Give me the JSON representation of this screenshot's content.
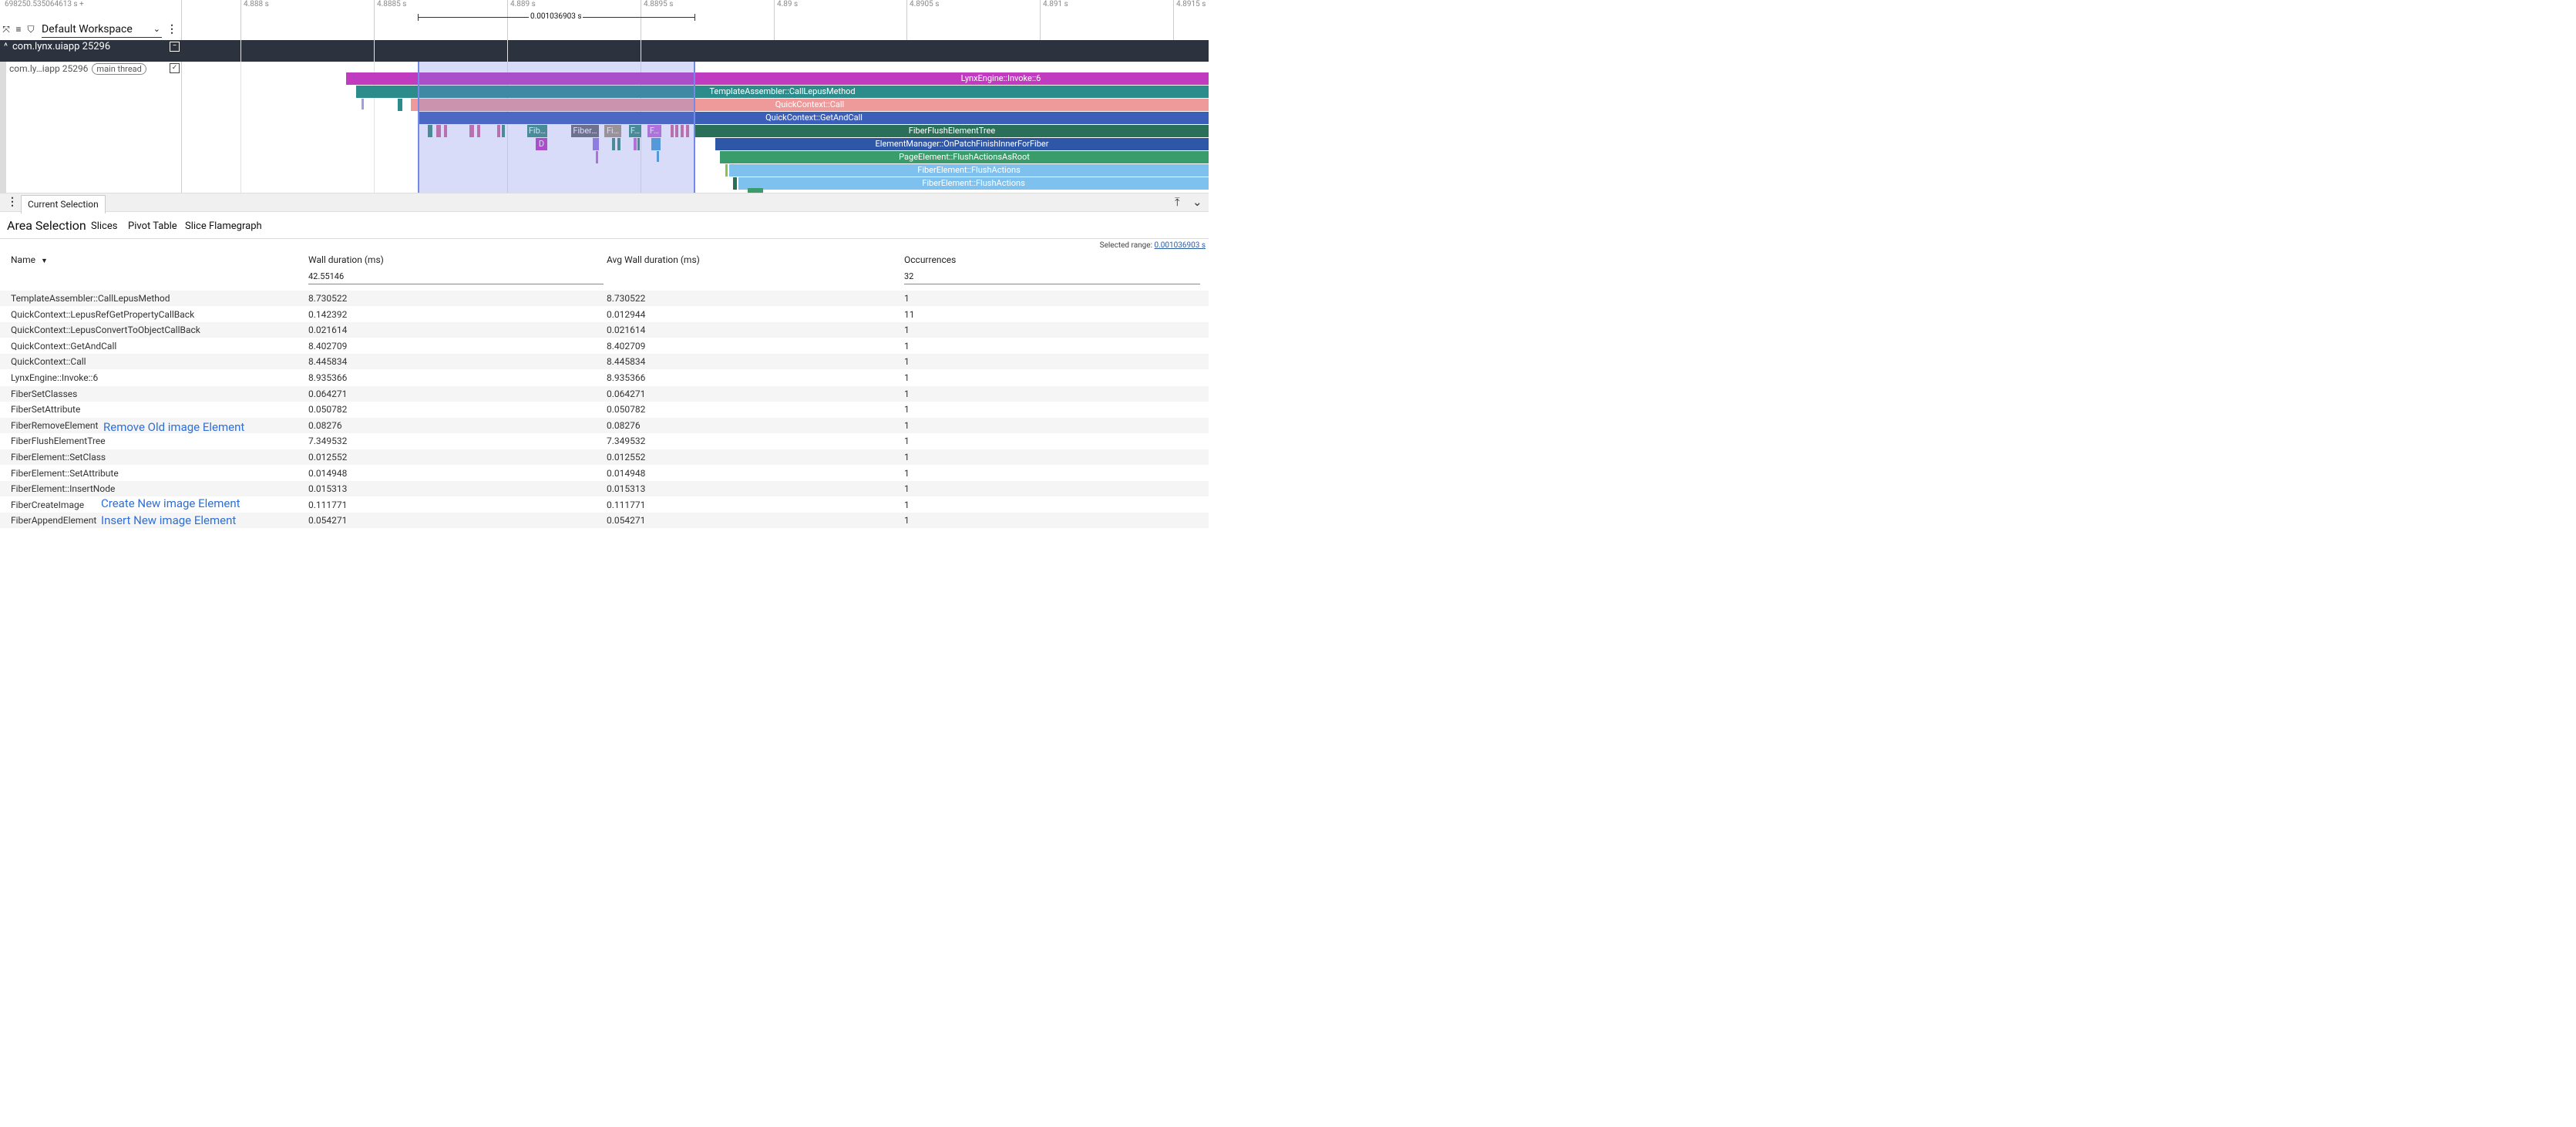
{
  "timeline": {
    "time_origin": "698250.535064613 s +",
    "ticks": [
      "4.888 s",
      "4.8885 s",
      "4.889 s",
      "4.8895 s",
      "4.89 s",
      "4.8905 s",
      "4.891 s",
      "4.8915 s"
    ],
    "workspace": "Default Workspace",
    "selection_duration": "0.001036903 s",
    "process_name": "com.lynx.uiapp 25296",
    "thread_name": "com.ly…iapp 25296",
    "thread_label": "main thread",
    "slices": [
      {
        "label": "LynxEngine::Invoke::6",
        "color": "#c03bbf"
      },
      {
        "label": "TemplateAssembler::CallLepusMethod",
        "color": "#2c8c8c"
      },
      {
        "label": "QuickContext::Call",
        "color": "#ef9a9a"
      },
      {
        "label": "QuickContext::GetAndCall",
        "color": "#3b5fb8"
      },
      {
        "label": "FiberFlushElementTree",
        "color": "#2a6f57"
      },
      {
        "label": "ElementManager::OnPatchFinishInnerForFiber",
        "color": "#2e57a8"
      },
      {
        "label": "PageElement::FlushActionsAsRoot",
        "color": "#3a9c6a"
      },
      {
        "label": "FiberElement::FlushActions",
        "color": "#7fc1ee"
      },
      {
        "label": "FiberElement::FlushActions",
        "color": "#7fc1ee"
      }
    ],
    "small_slices": [
      {
        "label": "Fib…",
        "color": "#3b8f7a"
      },
      {
        "label": "Fiber…",
        "color": "#6b6b6b"
      },
      {
        "label": "Fi…",
        "color": "#a89a7a"
      },
      {
        "label": "F…",
        "color": "#3b8f7a"
      },
      {
        "label": "F…",
        "color": "#c76bd6"
      },
      {
        "label": "D",
        "color": "#c03bbf"
      }
    ]
  },
  "details": {
    "tab": "Current Selection",
    "title": "Area Selection",
    "subtabs": [
      "Slices",
      "Pivot Table",
      "Slice Flamegraph"
    ],
    "selected_range_label": "Selected range:",
    "selected_range_value": "0.001036903 s",
    "columns": [
      "Name",
      "Wall duration (ms)",
      "Avg Wall duration (ms)",
      "Occurrences"
    ],
    "sort_icon": "sort-down-icon",
    "totals": {
      "wall": "42.55146",
      "occurrences": "32"
    },
    "rows": [
      {
        "name": "TemplateAssembler::CallLepusMethod",
        "wall": "8.730522",
        "avg": "8.730522",
        "occ": "1"
      },
      {
        "name": "QuickContext::LepusRefGetPropertyCallBack",
        "wall": "0.142392",
        "avg": "0.012944",
        "occ": "11"
      },
      {
        "name": "QuickContext::LepusConvertToObjectCallBack",
        "wall": "0.021614",
        "avg": "0.021614",
        "occ": "1"
      },
      {
        "name": "QuickContext::GetAndCall",
        "wall": "8.402709",
        "avg": "8.402709",
        "occ": "1"
      },
      {
        "name": "QuickContext::Call",
        "wall": "8.445834",
        "avg": "8.445834",
        "occ": "1"
      },
      {
        "name": "LynxEngine::Invoke::6",
        "wall": "8.935366",
        "avg": "8.935366",
        "occ": "1"
      },
      {
        "name": "FiberSetClasses",
        "wall": "0.064271",
        "avg": "0.064271",
        "occ": "1"
      },
      {
        "name": "FiberSetAttribute",
        "wall": "0.050782",
        "avg": "0.050782",
        "occ": "1"
      },
      {
        "name": "FiberRemoveElement",
        "wall": "0.08276",
        "avg": "0.08276",
        "occ": "1"
      },
      {
        "name": "FiberFlushElementTree",
        "wall": "7.349532",
        "avg": "7.349532",
        "occ": "1"
      },
      {
        "name": "FiberElement::SetClass",
        "wall": "0.012552",
        "avg": "0.012552",
        "occ": "1"
      },
      {
        "name": "FiberElement::SetAttribute",
        "wall": "0.014948",
        "avg": "0.014948",
        "occ": "1"
      },
      {
        "name": "FiberElement::InsertNode",
        "wall": "0.015313",
        "avg": "0.015313",
        "occ": "1"
      },
      {
        "name": "FiberCreateImage",
        "wall": "0.111771",
        "avg": "0.111771",
        "occ": "1"
      },
      {
        "name": "FiberAppendElement",
        "wall": "0.054271",
        "avg": "0.054271",
        "occ": "1"
      }
    ],
    "annotations": [
      "Remove Old image Element",
      "Create New image Element",
      "Insert New image Element"
    ]
  },
  "colors": {
    "accent": "#2f6fd6",
    "process_header": "#2c333e",
    "selection": "#7488e8"
  }
}
